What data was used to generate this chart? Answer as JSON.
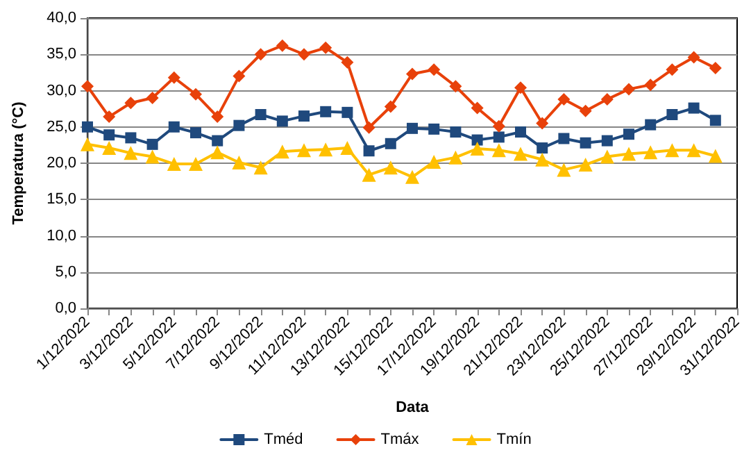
{
  "chart_data": {
    "type": "line",
    "xlabel": "Data",
    "ylabel": "Temperatura (°C)",
    "categories": [
      "1/12/2022",
      null,
      "3/12/2022",
      null,
      "5/12/2022",
      null,
      "7/12/2022",
      null,
      "9/12/2022",
      null,
      "11/12/2022",
      null,
      "13/12/2022",
      null,
      "15/12/2022",
      null,
      "17/12/2022",
      null,
      "19/12/2022",
      null,
      "21/12/2022",
      null,
      "23/12/2022",
      null,
      "25/12/2022",
      null,
      "27/12/2022",
      null,
      "29/12/2022",
      null,
      "31/12/2022"
    ],
    "series": [
      {
        "name": "Tméd",
        "color": "#1f497d",
        "marker": "square",
        "values": [
          25.0,
          23.9,
          23.5,
          22.6,
          25.0,
          24.2,
          23.1,
          25.2,
          26.7,
          25.8,
          26.5,
          27.1,
          27.0,
          21.7,
          22.7,
          24.8,
          24.7,
          24.3,
          23.2,
          23.6,
          24.3,
          22.1,
          23.4,
          22.8,
          23.1,
          24.0,
          25.3,
          26.7,
          27.6,
          25.9,
          null
        ]
      },
      {
        "name": "Tmáx",
        "color": "#e8410a",
        "marker": "diamond",
        "values": [
          30.6,
          26.4,
          28.3,
          29.0,
          31.8,
          29.5,
          26.4,
          32.0,
          35.0,
          36.2,
          35.0,
          35.9,
          33.9,
          24.9,
          27.8,
          32.3,
          32.9,
          30.6,
          27.6,
          25.1,
          30.4,
          25.5,
          28.8,
          27.2,
          28.8,
          30.2,
          30.8,
          32.9,
          34.6,
          33.1,
          null
        ]
      },
      {
        "name": "Tmín",
        "color": "#ffc000",
        "marker": "triangle",
        "values": [
          22.6,
          22.1,
          21.4,
          20.9,
          19.9,
          19.9,
          21.5,
          20.1,
          19.4,
          21.6,
          21.8,
          21.9,
          22.1,
          18.4,
          19.4,
          18.1,
          20.2,
          20.8,
          22.0,
          21.8,
          21.3,
          20.5,
          19.1,
          19.8,
          20.9,
          21.3,
          21.5,
          21.8,
          21.8,
          21.0,
          null
        ]
      }
    ],
    "ylim": [
      0,
      40
    ],
    "yticks": [
      {
        "value": 0,
        "label": "0,0"
      },
      {
        "value": 5,
        "label": "5,0"
      },
      {
        "value": 10,
        "label": "10,0"
      },
      {
        "value": 15,
        "label": "15,0"
      },
      {
        "value": 20,
        "label": "20,0"
      },
      {
        "value": 25,
        "label": "25,0"
      },
      {
        "value": 30,
        "label": "30,0"
      },
      {
        "value": 35,
        "label": "35,0"
      },
      {
        "value": 40,
        "label": "40,0"
      }
    ],
    "grid": "y",
    "legend": "bottom",
    "line_style": "solid"
  }
}
